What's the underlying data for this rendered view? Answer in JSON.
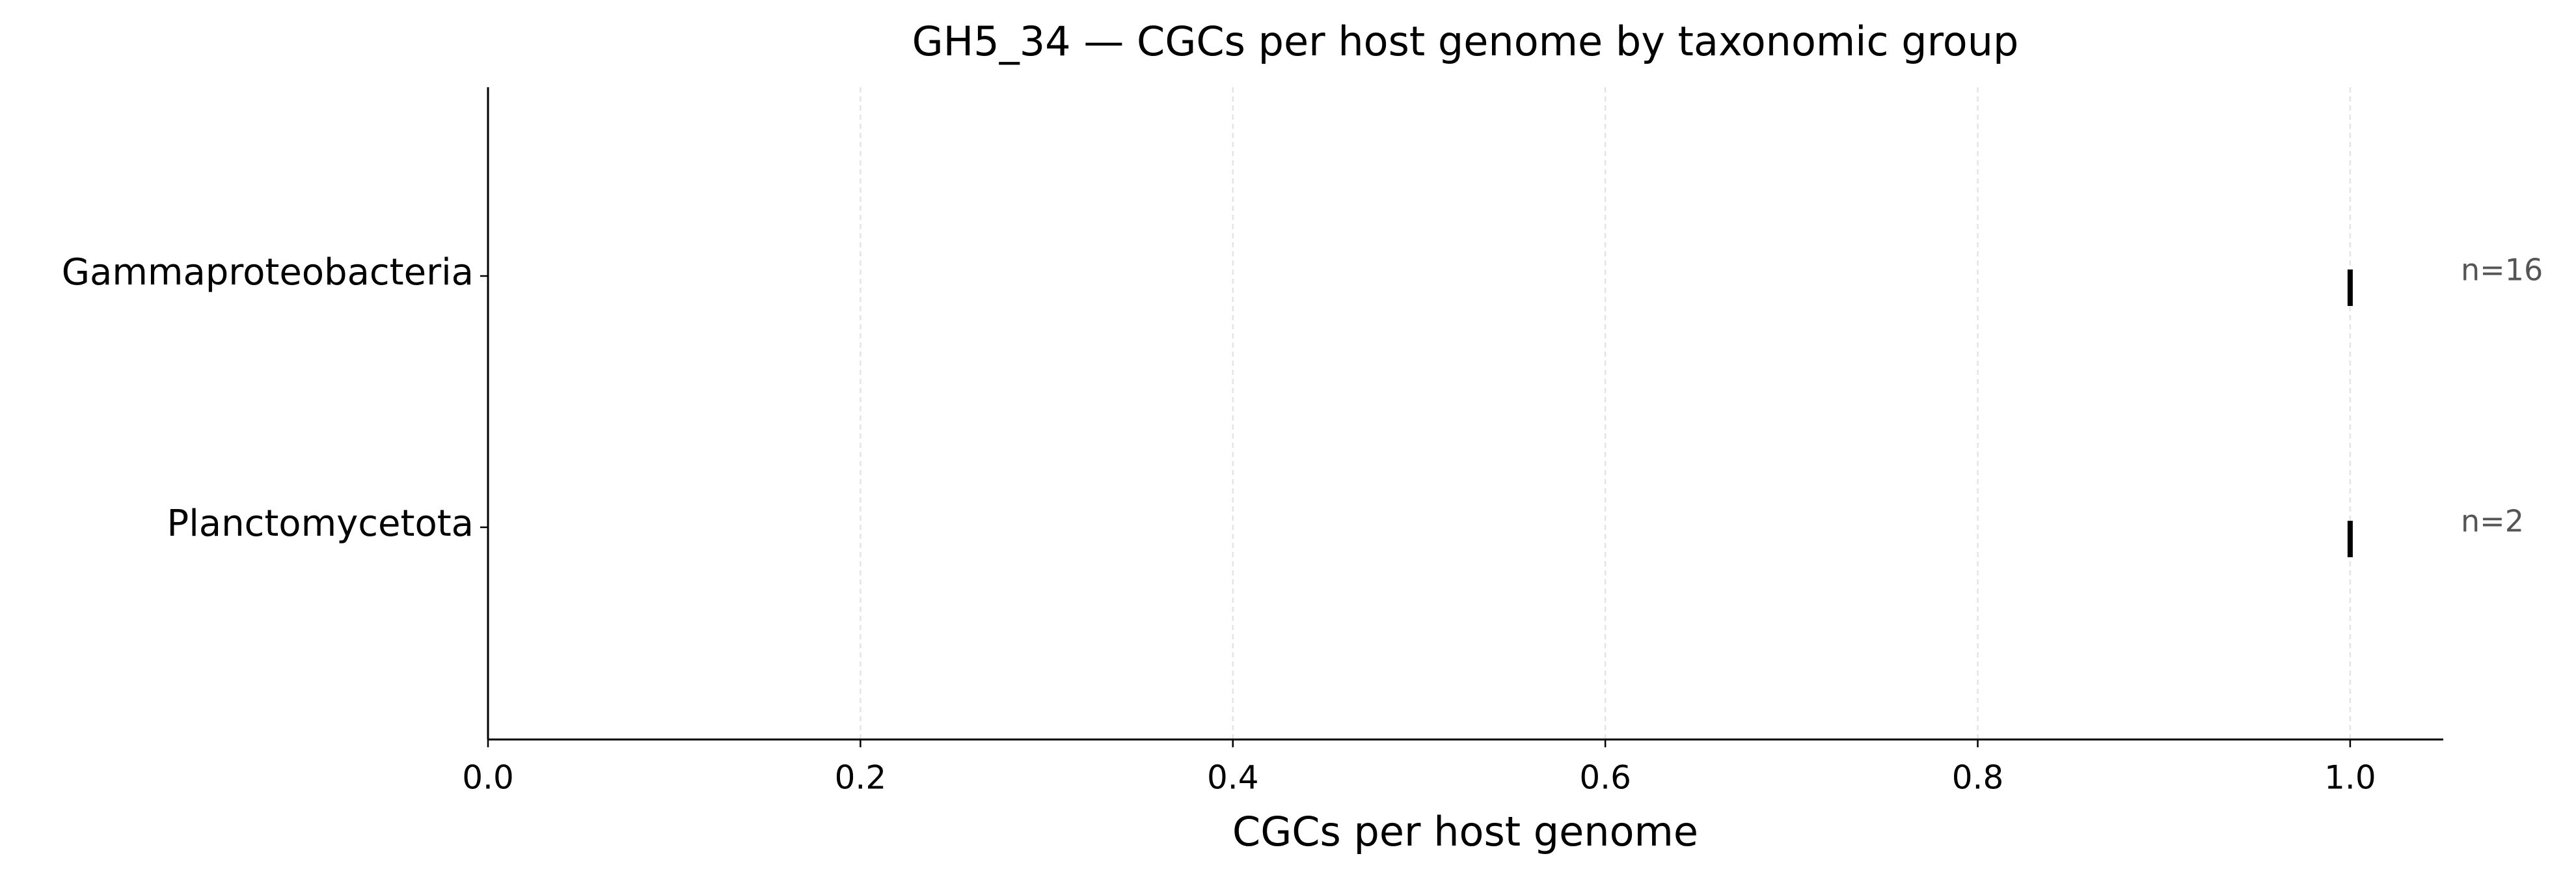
{
  "chart_data": {
    "type": "strip",
    "title": "GH5_34 — CGCs per host genome by taxonomic group",
    "xlabel": "CGCs per host genome",
    "categories": [
      "Gammaproteobacteria",
      "Planctomycetota"
    ],
    "values": [
      1.0,
      1.0
    ],
    "annotations": [
      "n=16",
      "n=2"
    ],
    "color": "#000000",
    "xlim": [
      0,
      1.05
    ],
    "xticks": [
      {
        "value": 0,
        "label": "0.0"
      },
      {
        "value": 0.2,
        "label": "0.2"
      },
      {
        "value": 0.4,
        "label": "0.4"
      },
      {
        "value": 0.6,
        "label": "0.6"
      },
      {
        "value": 0.8,
        "label": "0.8"
      },
      {
        "value": 1,
        "label": "1.0"
      }
    ],
    "grid": true
  }
}
